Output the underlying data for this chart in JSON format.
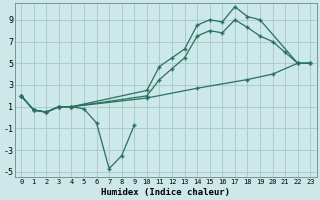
{
  "xlabel": "Humidex (Indice chaleur)",
  "background_color": "#cce8e8",
  "grid_color": "#aacccc",
  "line_color": "#2a7060",
  "xlim": [
    -0.5,
    23.5
  ],
  "ylim": [
    -5.5,
    10.5
  ],
  "yticks": [
    -5,
    -3,
    -1,
    1,
    3,
    5,
    7,
    9
  ],
  "xticks": [
    0,
    1,
    2,
    3,
    4,
    5,
    6,
    7,
    8,
    9,
    10,
    11,
    12,
    13,
    14,
    15,
    16,
    17,
    18,
    19,
    20,
    21,
    22,
    23
  ],
  "series": [
    {
      "x": [
        0,
        1,
        2,
        3,
        4,
        5,
        6,
        7,
        8,
        9
      ],
      "y": [
        2,
        0.7,
        0.5,
        1.0,
        1.0,
        0.8,
        -0.5,
        -4.7,
        -3.5,
        -0.7
      ]
    },
    {
      "x": [
        0,
        1,
        2,
        3,
        4,
        10,
        11,
        12,
        13,
        14,
        15,
        16,
        17,
        18,
        19,
        22,
        23
      ],
      "y": [
        2,
        0.7,
        0.5,
        1.0,
        1.0,
        2.5,
        4.7,
        5.5,
        6.3,
        8.5,
        9.0,
        8.8,
        10.2,
        9.3,
        9.0,
        5.0,
        5.0
      ]
    },
    {
      "x": [
        0,
        1,
        2,
        3,
        4,
        10,
        11,
        12,
        13,
        14,
        15,
        16,
        17,
        18,
        19,
        20,
        21,
        22,
        23
      ],
      "y": [
        2,
        0.7,
        0.5,
        1.0,
        1.0,
        2.0,
        3.5,
        4.5,
        5.5,
        7.5,
        8.0,
        7.8,
        9.0,
        8.3,
        7.5,
        7.0,
        6.0,
        5.0,
        5.0
      ]
    },
    {
      "x": [
        0,
        1,
        2,
        3,
        4,
        10,
        14,
        18,
        20,
        22,
        23
      ],
      "y": [
        2,
        0.7,
        0.5,
        1.0,
        1.0,
        1.8,
        2.7,
        3.5,
        4.0,
        5.0,
        5.0
      ]
    }
  ]
}
